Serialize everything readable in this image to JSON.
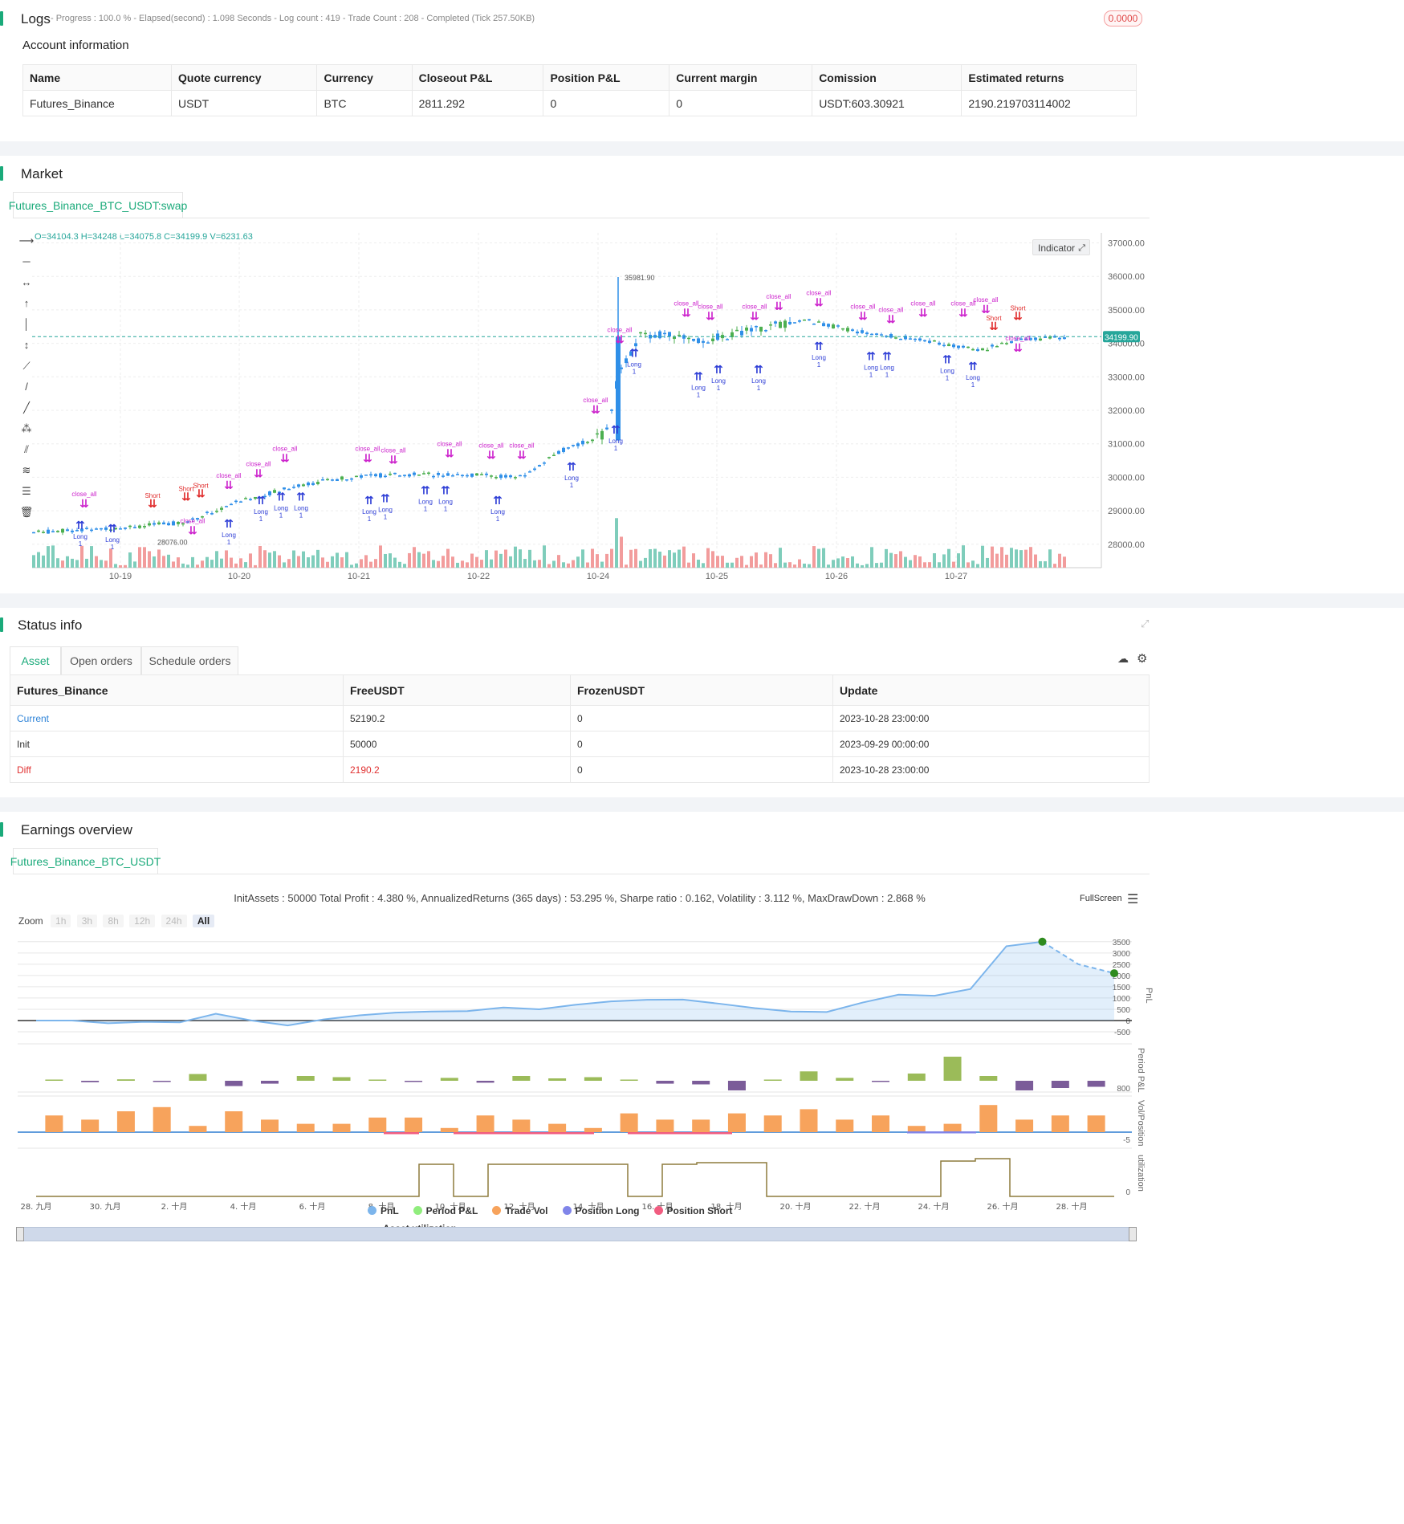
{
  "logs": {
    "title": "Logs",
    "status": "- Progress : 100.0 % - Elapsed(second) : 1.098  Seconds - Log count : 419 - Trade Count : 208 - Completed (Tick 257.50KB)",
    "badge": "0.0000"
  },
  "account": {
    "title": "Account information",
    "headers": [
      "Name",
      "Quote currency",
      "Currency",
      "Closeout P&L",
      "Position P&L",
      "Current margin",
      "Comission",
      "Estimated returns"
    ],
    "row": [
      "Futures_Binance",
      "USDT",
      "BTC",
      "2811.292",
      "0",
      "0",
      "USDT:603.30921",
      "2190.219703114002"
    ]
  },
  "market": {
    "title": "Market",
    "tab": "Futures_Binance_BTC_USDT:swap",
    "ohlc": "O=34104.3 H=34248 L=34075.8 C=34199.9 V=6231.63",
    "indicator_btn": "Indicator",
    "price_ticks": [
      "37000.00",
      "36000.00",
      "35000.00",
      "34000.00",
      "33000.00",
      "32000.00",
      "31000.00",
      "30000.00",
      "29000.00",
      "28000.00"
    ],
    "last_price": "34199.90",
    "high_label": "35981.90",
    "low_label": "28076.00",
    "date_ticks": [
      "10-19",
      "10-20",
      "10-21",
      "10-22",
      "10-24",
      "10-25",
      "10-26",
      "10-27"
    ],
    "marker_labels": {
      "close_all": "close_all",
      "close": "close",
      "long": "Long",
      "short": "Short",
      "one": "1"
    }
  },
  "status": {
    "title": "Status info",
    "tabs": [
      "Asset",
      "Open orders",
      "Schedule orders"
    ],
    "headers": [
      "Futures_Binance",
      "FreeUSDT",
      "FrozenUSDT",
      "Update"
    ],
    "rows": [
      {
        "name": "Current",
        "free": "52190.2",
        "frozen": "0",
        "update": "2023-10-28 23:00:00"
      },
      {
        "name": "Init",
        "free": "50000",
        "frozen": "0",
        "update": "2023-09-29 00:00:00"
      },
      {
        "name": "Diff",
        "free": "2190.2",
        "frozen": "0",
        "update": "2023-10-28 23:00:00"
      }
    ]
  },
  "earnings": {
    "title": "Earnings overview",
    "tab": "Futures_Binance_BTC_USDT",
    "summary": "InitAssets : 50000 Total Profit : 4.380 %, AnnualizedReturns (365 days) : 53.295 %, Sharpe ratio : 0.162, Volatility : 3.112 %, MaxDrawDown : 2.868 %",
    "fullscreen": "FullScreen",
    "zoom_label": "Zoom",
    "zoom_buttons": [
      "1h",
      "3h",
      "8h",
      "12h",
      "24h",
      "All"
    ],
    "pnl_ticks": [
      "3500",
      "3000",
      "2500",
      "2000",
      "1500",
      "1000",
      "500",
      "0",
      "-500"
    ],
    "axis_labels": {
      "pnl": "PnL",
      "period": "Period P&L",
      "vol": "Vol/Position",
      "util": "utilization"
    },
    "period_tick": "800",
    "vol_tick": "-5",
    "util_tick": "0",
    "x_ticks": [
      "28. 九月",
      "30. 九月",
      "2. 十月",
      "4. 十月",
      "6. 十月",
      "8. 十月",
      "10. 十月",
      "12. 十月",
      "14. 十月",
      "16. 十月",
      "18. 十月",
      "20. 十月",
      "22. 十月",
      "24. 十月",
      "26. 十月",
      "28. 十月"
    ],
    "legend": [
      {
        "name": "PnL",
        "color": "#7cb5ec"
      },
      {
        "name": "Period P&L",
        "color": "#90ed7d"
      },
      {
        "name": "Trade Vol",
        "color": "#f7a35c"
      },
      {
        "name": "Position Long",
        "color": "#8085e9"
      },
      {
        "name": "Position Short",
        "color": "#f15c80"
      },
      {
        "name": "Asset utilization",
        "color": "#8d7b3d"
      }
    ]
  },
  "chart_data": [
    {
      "type": "line",
      "title": "",
      "ylabel": "PnL",
      "ylim": [
        -500,
        3600
      ],
      "x": [
        "09-28",
        "09-29",
        "09-30",
        "10-01",
        "10-02",
        "10-03",
        "10-04",
        "10-05",
        "10-06",
        "10-07",
        "10-08",
        "10-09",
        "10-10",
        "10-11",
        "10-12",
        "10-13",
        "10-14",
        "10-15",
        "10-16",
        "10-17",
        "10-18",
        "10-19",
        "10-20",
        "10-21",
        "10-22",
        "10-23",
        "10-24",
        "10-25",
        "10-26",
        "10-27",
        "10-28"
      ],
      "series": [
        {
          "name": "PnL",
          "values": [
            0,
            0,
            -120,
            -60,
            -80,
            300,
            0,
            -220,
            50,
            230,
            350,
            400,
            420,
            580,
            500,
            700,
            850,
            920,
            930,
            750,
            550,
            400,
            380,
            800,
            1150,
            1100,
            1400,
            3300,
            3500,
            2500,
            2100
          ]
        }
      ]
    },
    {
      "type": "bar",
      "ylabel": "Period P&L",
      "x": [
        "09-29",
        "09-30",
        "10-01",
        "10-02",
        "10-03",
        "10-04",
        "10-05",
        "10-06",
        "10-07",
        "10-08",
        "10-09",
        "10-10",
        "10-11",
        "10-12",
        "10-13",
        "10-14",
        "10-15",
        "10-16",
        "10-17",
        "10-18",
        "10-19",
        "10-20",
        "10-21",
        "10-22",
        "10-23",
        "10-24",
        "10-25",
        "10-26",
        "10-27",
        "10-28"
      ],
      "values": [
        0,
        -60,
        60,
        -20,
        280,
        -220,
        -120,
        200,
        150,
        50,
        -20,
        120,
        -80,
        200,
        100,
        150,
        20,
        -120,
        -150,
        -400,
        0,
        390,
        120,
        -50,
        300,
        1000,
        200,
        -400,
        -300,
        -250
      ]
    },
    {
      "type": "bar",
      "ylabel": "Trade Vol",
      "values": [
        8,
        6,
        10,
        12,
        3,
        10,
        6,
        4,
        4,
        7,
        7,
        2,
        8,
        6,
        4,
        2,
        9,
        6,
        6,
        9,
        8,
        11,
        6,
        8,
        3,
        4,
        13,
        6,
        8,
        8
      ]
    }
  ]
}
